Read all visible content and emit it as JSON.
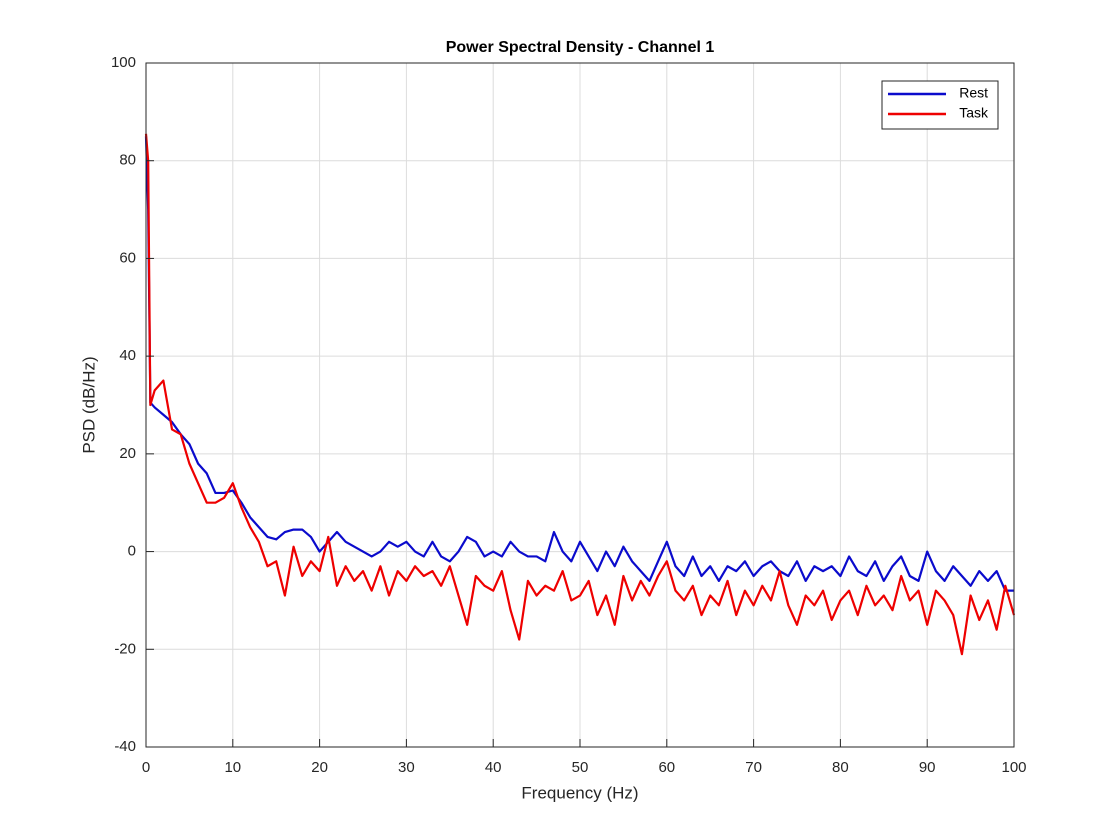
{
  "chart_data": {
    "type": "line",
    "title": "Power Spectral Density - Channel 1",
    "xlabel": "Frequency (Hz)",
    "ylabel": "PSD (dB/Hz)",
    "xlim": [
      0,
      100
    ],
    "ylim": [
      -40,
      100
    ],
    "xticks": [
      0,
      10,
      20,
      30,
      40,
      50,
      60,
      70,
      80,
      90,
      100
    ],
    "yticks": [
      -40,
      -20,
      0,
      20,
      40,
      60,
      80,
      100
    ],
    "grid": true,
    "legend": "northeast",
    "x": [
      0,
      0.25,
      0.5,
      1,
      2,
      3,
      4,
      5,
      6,
      7,
      8,
      9,
      10,
      11,
      12,
      13,
      14,
      15,
      16,
      17,
      18,
      19,
      20,
      21,
      22,
      23,
      24,
      25,
      26,
      27,
      28,
      29,
      30,
      31,
      32,
      33,
      34,
      35,
      36,
      37,
      38,
      39,
      40,
      41,
      42,
      43,
      44,
      45,
      46,
      47,
      48,
      49,
      50,
      51,
      52,
      53,
      54,
      55,
      56,
      57,
      58,
      59,
      60,
      61,
      62,
      63,
      64,
      65,
      66,
      67,
      68,
      69,
      70,
      71,
      72,
      73,
      74,
      75,
      76,
      77,
      78,
      79,
      80,
      81,
      82,
      83,
      84,
      85,
      86,
      87,
      88,
      89,
      90,
      91,
      92,
      93,
      94,
      95,
      96,
      97,
      98,
      99,
      100
    ],
    "series": [
      {
        "name": "Rest",
        "color": "#0b0bcc",
        "values": [
          85,
          70,
          30.5,
          29.5,
          28,
          26.5,
          24,
          22,
          18,
          16,
          12,
          12,
          12.5,
          10,
          7,
          5,
          3,
          2.5,
          4,
          4.5,
          4.5,
          3,
          0,
          2,
          4,
          2,
          1,
          0,
          -1,
          0,
          2,
          1,
          2,
          0,
          -1,
          2,
          -1,
          -2,
          0,
          3,
          2,
          -1,
          0,
          -1,
          2,
          0,
          -1,
          -1,
          -2,
          4,
          0,
          -2,
          2,
          -1,
          -4,
          0,
          -3,
          1,
          -2,
          -4,
          -6,
          -2,
          2,
          -3,
          -5,
          -1,
          -5,
          -3,
          -6,
          -3,
          -4,
          -2,
          -5,
          -3,
          -2,
          -4,
          -5,
          -2,
          -6,
          -3,
          -4,
          -3,
          -5,
          -1,
          -4,
          -5,
          -2,
          -6,
          -3,
          -1,
          -5,
          -6,
          0,
          -4,
          -6,
          -3,
          -5,
          -7,
          -4,
          -6,
          -4,
          -8,
          -8
        ]
      },
      {
        "name": "Task",
        "color": "#ee0000",
        "values": [
          85.5,
          80,
          30,
          33,
          35,
          25,
          24,
          18,
          14,
          10,
          10,
          11,
          14,
          9,
          5,
          2,
          -3,
          -2,
          -9,
          1,
          -5,
          -2,
          -4,
          3,
          -7,
          -3,
          -6,
          -4,
          -8,
          -3,
          -9,
          -4,
          -6,
          -3,
          -5,
          -4,
          -7,
          -3,
          -9,
          -15,
          -5,
          -7,
          -8,
          -4,
          -12,
          -18,
          -6,
          -9,
          -7,
          -8,
          -4,
          -10,
          -9,
          -6,
          -13,
          -9,
          -15,
          -5,
          -10,
          -6,
          -9,
          -5,
          -2,
          -8,
          -10,
          -7,
          -13,
          -9,
          -11,
          -6,
          -13,
          -8,
          -11,
          -7,
          -10,
          -4,
          -11,
          -15,
          -9,
          -11,
          -8,
          -14,
          -10,
          -8,
          -13,
          -7,
          -11,
          -9,
          -12,
          -5,
          -10,
          -8,
          -15,
          -8,
          -10,
          -13,
          -21,
          -9,
          -14,
          -10,
          -16,
          -7,
          -13
        ]
      }
    ]
  }
}
